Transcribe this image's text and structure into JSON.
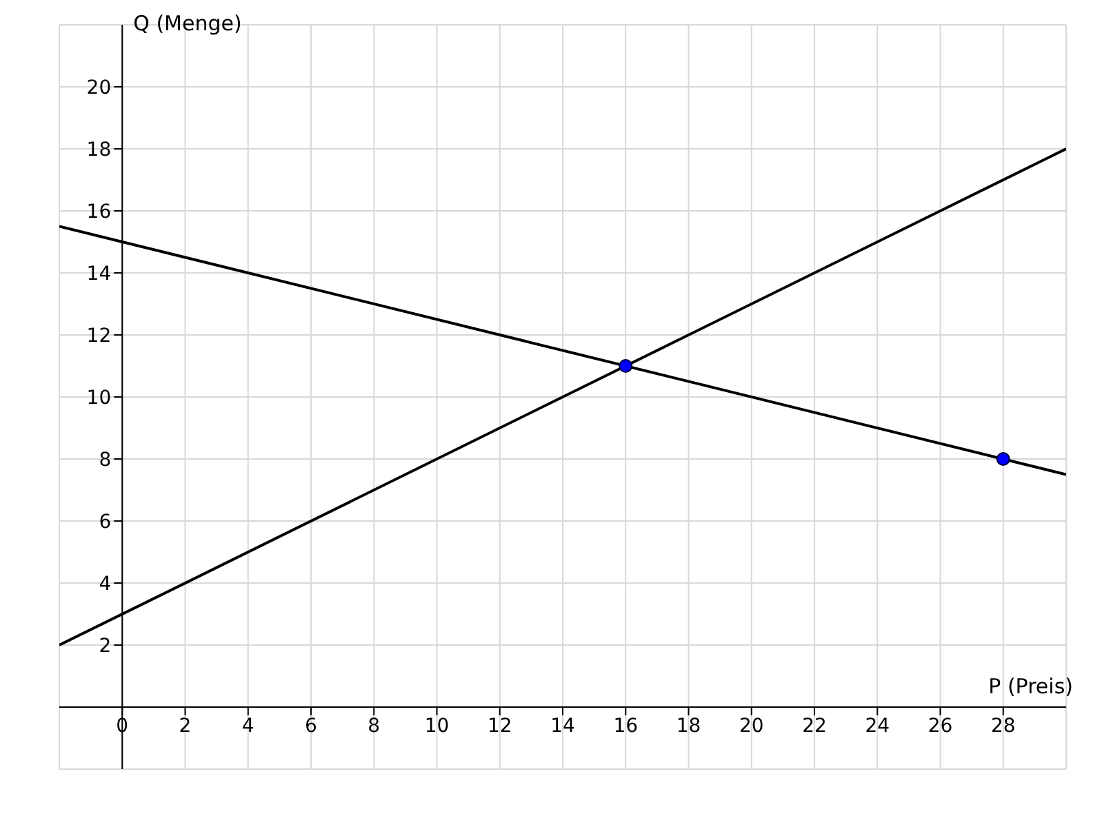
{
  "chart_data": {
    "type": "line",
    "xlabel": "P (Preis)",
    "ylabel": "Q (Menge)",
    "xlim": [
      -2,
      30
    ],
    "ylim": [
      -2,
      22
    ],
    "xticks": [
      {
        "value": 0,
        "label": "0"
      },
      2,
      4,
      6,
      8,
      10,
      12,
      14,
      16,
      18,
      20,
      22,
      24,
      26,
      28
    ],
    "yticks": [
      2,
      4,
      6,
      8,
      10,
      12,
      14,
      16,
      18,
      20
    ],
    "grid": true,
    "marker": "none",
    "line_style": "solid",
    "series": [
      {
        "x": [
          -2,
          30
        ],
        "values": [
          2,
          18
        ],
        "color": "#000000"
      },
      {
        "x": [
          -2,
          30
        ],
        "values": [
          15.5,
          7.5
        ],
        "color": "#000000"
      },
      {
        "type": "scatter",
        "x": [
          16,
          28
        ],
        "values": [
          11,
          8
        ],
        "color": "#0000ff",
        "marker": "circle"
      }
    ]
  }
}
